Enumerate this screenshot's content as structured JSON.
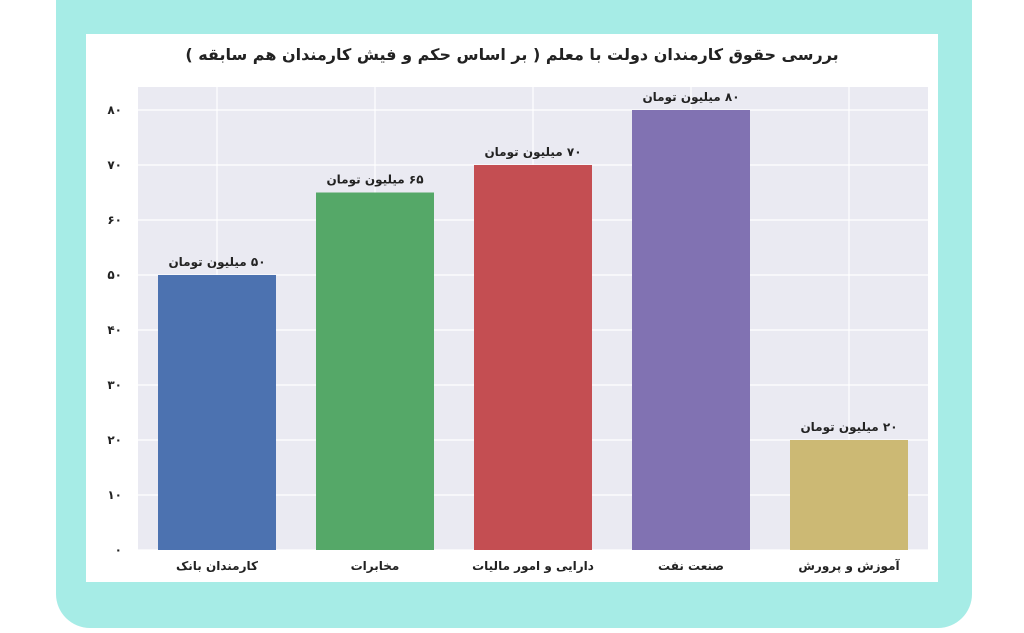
{
  "colors": {
    "frame": "#a6ece6",
    "plot_bg": "#eaeaf2",
    "grid": "#ffffff"
  },
  "chart_data": {
    "type": "bar",
    "title": "بررسی حقوق کارمندان دولت با معلم ( بر اساس حکم و فیش کارمندان هم سابقه )",
    "categories": [
      "کارمندان بانک",
      "مخابرات",
      "دارایی و امور مالیات",
      "صنعت نفت",
      "آموزش و پرورش"
    ],
    "values": [
      50,
      65,
      70,
      80,
      20
    ],
    "data_labels": [
      "۵۰ میلیون تومان",
      "۶۵ میلیون تومان",
      "۷۰ میلیون تومان",
      "۸۰ میلیون تومان",
      "۲۰ میلیون تومان"
    ],
    "colors": [
      "#4c72b0",
      "#55a868",
      "#c44e52",
      "#8172b2",
      "#ccb974"
    ],
    "ylim": [
      0,
      80
    ],
    "yticks": [
      0,
      10,
      20,
      30,
      40,
      50,
      60,
      70,
      80
    ],
    "ytick_labels": [
      "۰",
      "۱۰",
      "۲۰",
      "۳۰",
      "۴۰",
      "۵۰",
      "۶۰",
      "۷۰",
      "۸۰"
    ],
    "grid": true,
    "xlabel": "",
    "ylabel": ""
  }
}
